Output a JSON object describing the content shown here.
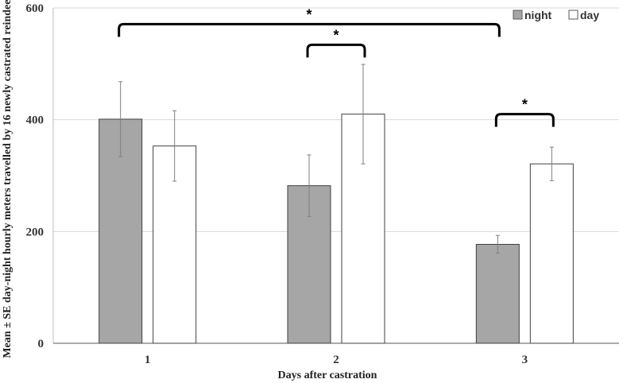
{
  "chart_data": {
    "type": "bar",
    "title": "",
    "xlabel": "Days after castration",
    "ylabel": "Mean ± SE day-night hourly meters travelled by 16 newly castrated reindeer",
    "categories": [
      "1",
      "2",
      "3"
    ],
    "series": [
      {
        "name": "night",
        "values": [
          401,
          282,
          177
        ],
        "errors": [
          67,
          55,
          16
        ],
        "color": "#a6a6a6"
      },
      {
        "name": "day",
        "values": [
          353,
          410,
          321
        ],
        "errors": [
          63,
          89,
          30
        ],
        "color": "#ffffff"
      }
    ],
    "ylim": [
      0,
      600
    ],
    "yticks": [
      0,
      200,
      400,
      600
    ],
    "grid": true,
    "legend_position": "top-right",
    "significance": [
      {
        "from": "1-night",
        "to": "3-night",
        "label": "*"
      },
      {
        "from": "2-night",
        "to": "2-day",
        "label": "*"
      },
      {
        "from": "3-night",
        "to": "3-day",
        "label": "*"
      }
    ]
  }
}
